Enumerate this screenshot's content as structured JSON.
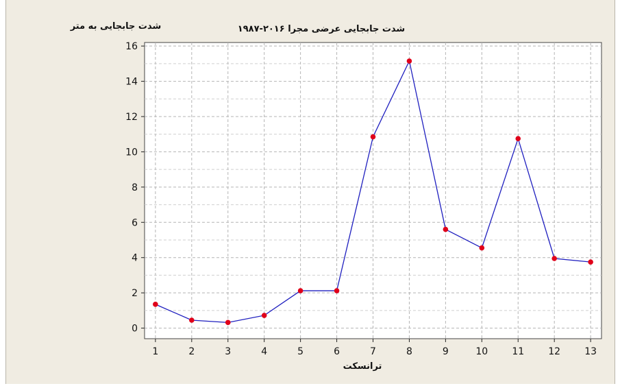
{
  "chart_data": {
    "type": "line",
    "title": "شدت جابجایی عرضی مجرا ۲۰۱۶-۱۹۸۷",
    "ylabel": "شدت جابجایی به متر",
    "xlabel": "ترانسکت",
    "x": [
      1,
      2,
      3,
      4,
      5,
      6,
      7,
      8,
      9,
      10,
      11,
      12,
      13
    ],
    "series": [
      {
        "values": [
          1.35,
          0.45,
          0.32,
          0.72,
          2.12,
          2.12,
          10.85,
          15.15,
          5.6,
          4.55,
          10.75,
          3.95,
          3.75
        ]
      }
    ],
    "xticks": [
      "1",
      "2",
      "3",
      "4",
      "5",
      "6",
      "7",
      "8",
      "9",
      "10",
      "11",
      "12",
      "13"
    ],
    "yticks": [
      "0",
      "2",
      "4",
      "6",
      "8",
      "10",
      "12",
      "14",
      "16"
    ],
    "xlim": [
      0.7,
      13.3
    ],
    "ylim": [
      -0.6,
      16.2
    ],
    "grid": true,
    "line_color": "#1f1fbf",
    "marker_color": "#e0001a",
    "plot_background": "#ffffff",
    "panel_background": "#f0ece2"
  }
}
